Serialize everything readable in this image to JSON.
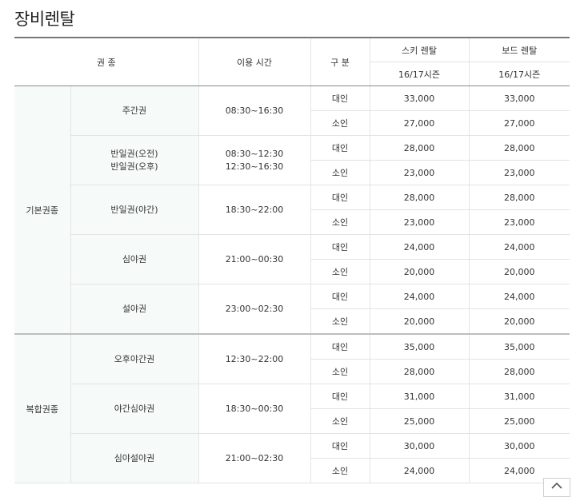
{
  "page": {
    "title": "장비렌탈"
  },
  "table": {
    "headers": {
      "ticket_type": "권 종",
      "usage_time": "이용 시간",
      "division": "구 분",
      "ski_rental": "스키 렌탈",
      "board_rental": "보드 렌탈",
      "ski_season": "16/17시즌",
      "board_season": "16/17시즌"
    },
    "groups": [
      {
        "category": "기본권종",
        "tickets": [
          {
            "name_lines": [
              "주간권"
            ],
            "time_lines": [
              "08:30~16:30"
            ],
            "rows": [
              {
                "division": "대인",
                "ski": "33,000",
                "board": "33,000"
              },
              {
                "division": "소인",
                "ski": "27,000",
                "board": "27,000"
              }
            ]
          },
          {
            "name_lines": [
              "반일권(오전)",
              "반일권(오후)"
            ],
            "time_lines": [
              "08:30~12:30",
              "12:30~16:30"
            ],
            "rows": [
              {
                "division": "대인",
                "ski": "28,000",
                "board": "28,000"
              },
              {
                "division": "소인",
                "ski": "23,000",
                "board": "23,000"
              }
            ]
          },
          {
            "name_lines": [
              "반일권(야간)"
            ],
            "time_lines": [
              "18:30~22:00"
            ],
            "rows": [
              {
                "division": "대인",
                "ski": "28,000",
                "board": "28,000"
              },
              {
                "division": "소인",
                "ski": "23,000",
                "board": "23,000"
              }
            ]
          },
          {
            "name_lines": [
              "심야권"
            ],
            "time_lines": [
              "21:00~00:30"
            ],
            "rows": [
              {
                "division": "대인",
                "ski": "24,000",
                "board": "24,000"
              },
              {
                "division": "소인",
                "ski": "20,000",
                "board": "20,000"
              }
            ]
          },
          {
            "name_lines": [
              "설야권"
            ],
            "time_lines": [
              "23:00~02:30"
            ],
            "rows": [
              {
                "division": "대인",
                "ski": "24,000",
                "board": "24,000"
              },
              {
                "division": "소인",
                "ski": "20,000",
                "board": "20,000"
              }
            ]
          }
        ]
      },
      {
        "category": "복합권종",
        "tickets": [
          {
            "name_lines": [
              "오후야간권"
            ],
            "time_lines": [
              "12:30~22:00"
            ],
            "rows": [
              {
                "division": "대인",
                "ski": "35,000",
                "board": "35,000"
              },
              {
                "division": "소인",
                "ski": "28,000",
                "board": "28,000"
              }
            ]
          },
          {
            "name_lines": [
              "야간심야권"
            ],
            "time_lines": [
              "18:30~00:30"
            ],
            "rows": [
              {
                "division": "대인",
                "ski": "31,000",
                "board": "31,000"
              },
              {
                "division": "소인",
                "ski": "25,000",
                "board": "25,000"
              }
            ]
          },
          {
            "name_lines": [
              "심야설야권"
            ],
            "time_lines": [
              "21:00~02:30"
            ],
            "rows": [
              {
                "division": "대인",
                "ski": "30,000",
                "board": "30,000"
              },
              {
                "division": "소인",
                "ski": "24,000",
                "board": "24,000"
              }
            ]
          }
        ]
      }
    ]
  },
  "icons": {
    "scroll_top": "chevron-up-icon"
  }
}
